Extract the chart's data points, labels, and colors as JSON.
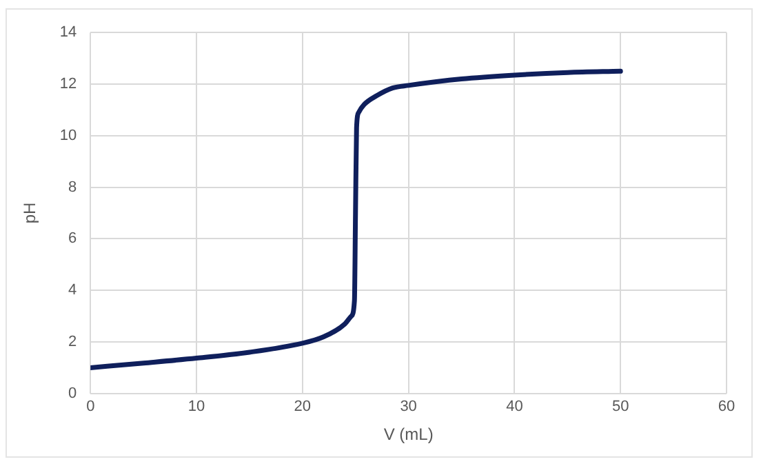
{
  "chart_data": {
    "type": "line",
    "xlabel": "V (mL)",
    "ylabel": "pH",
    "x": [
      0,
      5,
      10,
      15,
      20,
      22,
      24,
      24.6,
      24.9,
      25,
      25.1,
      25.3,
      25.8,
      27,
      28.5,
      30,
      35,
      40,
      45,
      50
    ],
    "series": [
      {
        "color": "#0f1f5c",
        "values": [
          1.0,
          1.18,
          1.37,
          1.6,
          1.95,
          2.2,
          2.7,
          3.0,
          3.6,
          7.0,
          10.3,
          10.9,
          11.2,
          11.55,
          11.85,
          11.95,
          12.2,
          12.35,
          12.45,
          12.5
        ]
      }
    ],
    "xlim": [
      0,
      60
    ],
    "xticks": [
      0,
      10,
      20,
      30,
      40,
      50,
      60
    ],
    "ylim": [
      0,
      14
    ],
    "yticks": [
      0,
      2,
      4,
      6,
      8,
      10,
      12,
      14
    ],
    "grid": true,
    "legend": false,
    "marker": "none",
    "line_style": "solid"
  }
}
